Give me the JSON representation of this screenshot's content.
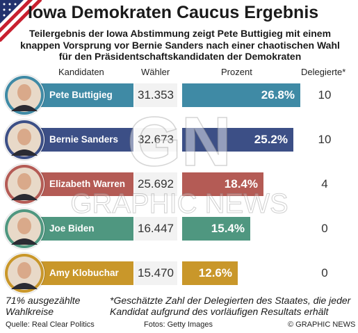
{
  "header": {
    "title": "Iowa Demokraten Caucus Ergebnis",
    "subtitle": "Teilergebnis der Iowa Abstimmung zeigt Pete Buttigieg mit einem knappen Vorsprung vor Bernie Sanders nach einer chaotischen Wahl für den Präsidentschaftskandidaten der Demokraten"
  },
  "columns": {
    "candidates": "Kandidaten",
    "votes": "Wähler",
    "percent": "Prozent",
    "delegates": "Delegierte*"
  },
  "chart_data": {
    "type": "bar",
    "categories": [
      "Pete Buttigieg",
      "Bernie Sanders",
      "Elizabeth Warren",
      "Joe Biden",
      "Amy Klobuchar"
    ],
    "votes": [
      "31.353",
      "32.673",
      "25.692",
      "16.447",
      "15.470"
    ],
    "values": [
      26.8,
      25.2,
      18.4,
      15.4,
      12.6
    ],
    "labels": [
      "26.8%",
      "25.2%",
      "18.4%",
      "15.4%",
      "12.6%"
    ],
    "delegates": [
      "10",
      "10",
      "4",
      "0",
      "0"
    ],
    "colors": [
      "#3f8aa5",
      "#3c4f86",
      "#b45b55",
      "#4f9780",
      "#c9972a"
    ],
    "xlim": [
      0,
      30
    ]
  },
  "footer": {
    "precincts_note": "71% ausgezählte Wahlkreise",
    "delegates_note": "*Geschätzte Zahl der Delegierten des Staates, die jeder Kandidat aufgrund des vorläufigen Resultats erhält",
    "source": "Quelle: Real Clear Politics",
    "photos": "Fotos: Getty Images",
    "copyright": "© GRAPHIC NEWS"
  },
  "watermark": {
    "logo": "GN",
    "text": "GRAPHIC NEWS"
  },
  "icons": {
    "flag": "us-flag-corner-icon"
  }
}
